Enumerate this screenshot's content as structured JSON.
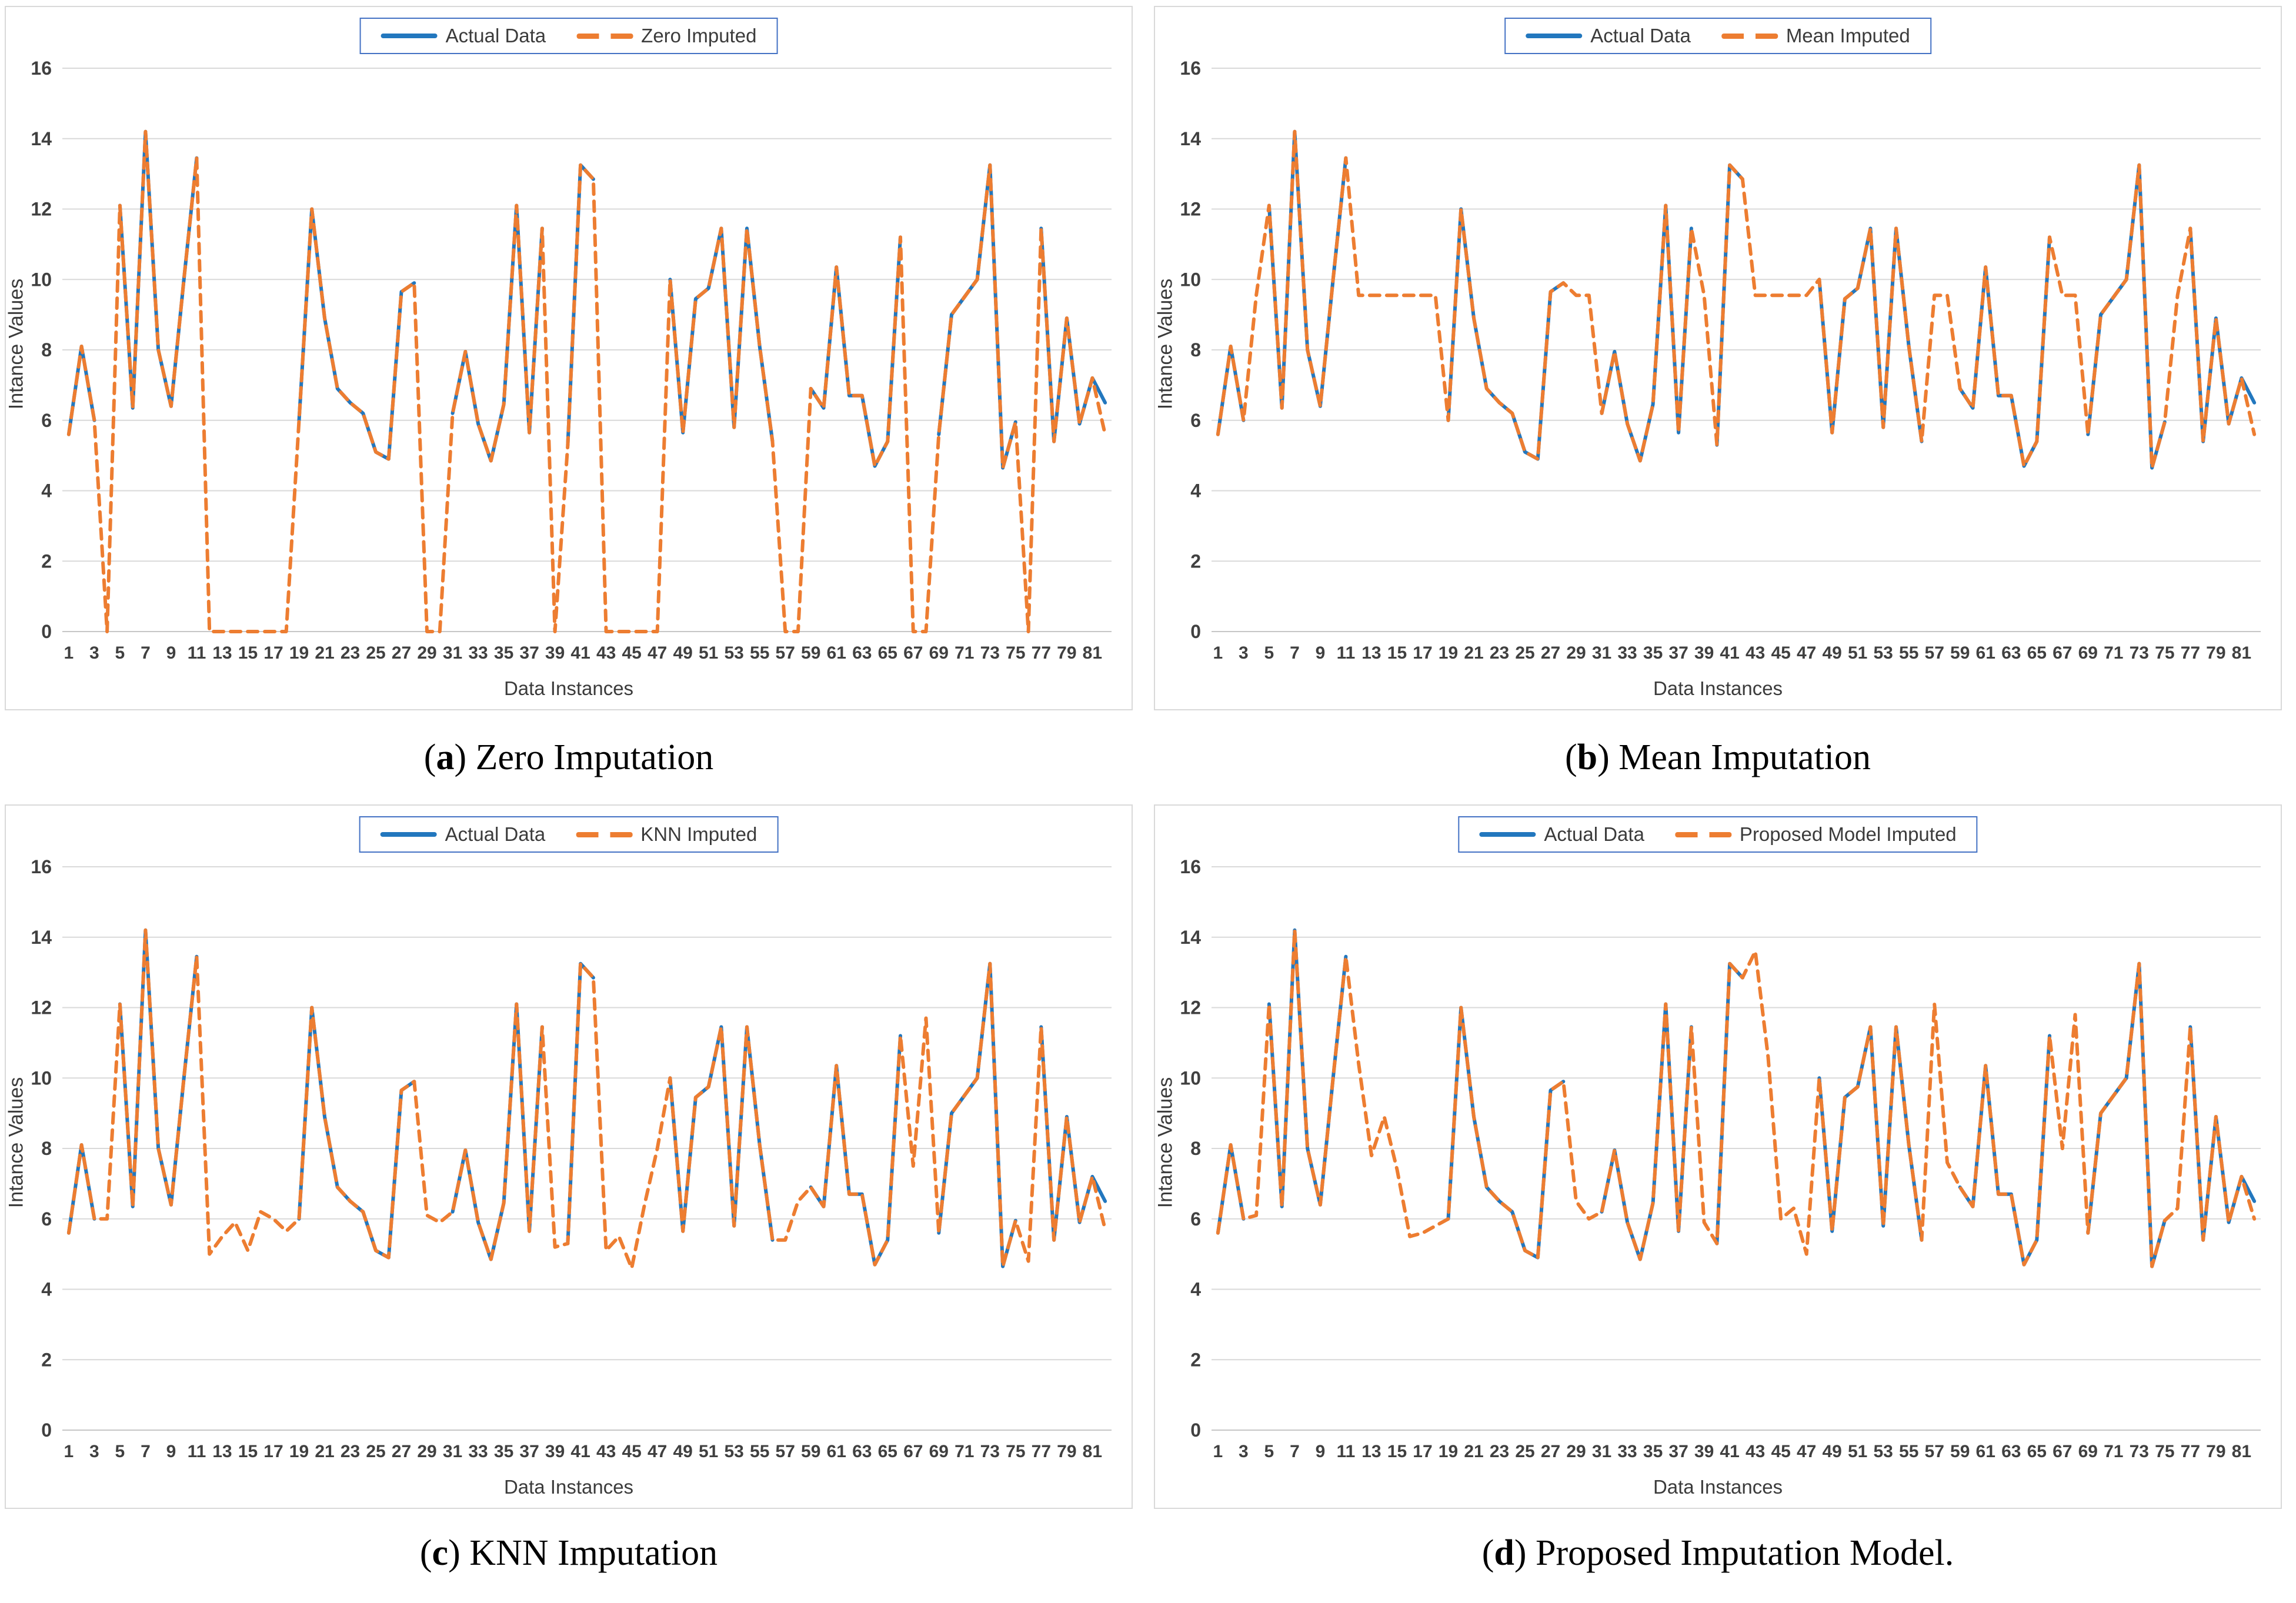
{
  "axis": {
    "y_label": "Intance Values",
    "x_label": "Data Instances",
    "y_ticks": [
      0,
      2,
      4,
      6,
      8,
      10,
      12,
      14,
      16
    ],
    "x_ticks": [
      1,
      3,
      5,
      7,
      9,
      11,
      13,
      15,
      17,
      19,
      21,
      23,
      25,
      27,
      29,
      31,
      33,
      35,
      37,
      39,
      41,
      43,
      45,
      47,
      49,
      51,
      53,
      55,
      57,
      59,
      61,
      63,
      65,
      67,
      69,
      71,
      73,
      75,
      77,
      79,
      81
    ],
    "ylim": [
      0,
      16
    ]
  },
  "colors": {
    "actual_line": "#2277BE",
    "imputed_line": "#ED7D31",
    "gridline": "#D9D9D9",
    "axis_line": "#C6C6C6",
    "tick_text": "#404040",
    "legend_border": "#4472C4",
    "panel_border": "#D9D9D9"
  },
  "punctuation": {
    "paren_open": "(",
    "paren_close": ")",
    "space": " "
  },
  "chart_data": {
    "type": "line",
    "n_points": 82,
    "xlabel": "Data Instances",
    "ylabel": "Intance Values",
    "ylim": [
      0,
      16
    ],
    "grid": true,
    "legend_position": "top-center",
    "actual": [
      5.6,
      8.1,
      6.0,
      null,
      12.1,
      6.35,
      14.2,
      8.0,
      6.4,
      10.0,
      13.45,
      null,
      null,
      null,
      null,
      null,
      null,
      null,
      6.0,
      12.0,
      8.9,
      6.9,
      6.5,
      6.2,
      5.1,
      4.9,
      9.65,
      9.9,
      null,
      null,
      6.2,
      7.95,
      5.9,
      4.85,
      6.45,
      12.1,
      5.65,
      11.45,
      null,
      5.3,
      13.25,
      12.85,
      null,
      null,
      null,
      null,
      null,
      10.0,
      5.65,
      9.45,
      9.75,
      11.45,
      5.8,
      11.45,
      8.1,
      5.4,
      null,
      null,
      6.9,
      6.35,
      10.35,
      6.7,
      6.7,
      4.7,
      5.4,
      11.2,
      null,
      null,
      5.6,
      9.0,
      9.5,
      10.0,
      13.25,
      4.65,
      5.95,
      null,
      11.45,
      5.4,
      8.9,
      5.9,
      7.2,
      6.5
    ],
    "missing_indices": [
      4,
      12,
      13,
      14,
      15,
      16,
      17,
      18,
      29,
      30,
      39,
      43,
      44,
      45,
      46,
      47,
      57,
      58,
      67,
      68,
      76
    ],
    "charts": [
      {
        "key": "zero",
        "caption_letter": "a",
        "caption": "Zero Imputation",
        "legend_actual": "Actual Data",
        "legend_imputed": "Zero Imputed",
        "imputed": {
          "4": 0,
          "12": 0,
          "13": 0,
          "14": 0,
          "15": 0,
          "16": 0,
          "17": 0,
          "18": 0,
          "29": 0,
          "30": 0,
          "39": 0,
          "43": 0,
          "44": 0,
          "45": 0,
          "46": 0,
          "47": 0,
          "57": 0,
          "58": 0,
          "67": 0,
          "68": 0,
          "76": 0,
          "82": 5.6
        }
      },
      {
        "key": "mean",
        "caption_letter": "b",
        "caption": "Mean Imputation",
        "legend_actual": "Actual Data",
        "legend_imputed": "Mean Imputed",
        "imputed": {
          "4": 9.55,
          "12": 9.55,
          "13": 9.55,
          "14": 9.55,
          "15": 9.55,
          "16": 9.55,
          "17": 9.55,
          "18": 9.55,
          "29": 9.55,
          "30": 9.55,
          "39": 9.55,
          "43": 9.55,
          "44": 9.55,
          "45": 9.55,
          "46": 9.55,
          "47": 9.55,
          "57": 9.55,
          "58": 9.55,
          "67": 9.55,
          "68": 9.55,
          "76": 9.55,
          "82": 5.6
        }
      },
      {
        "key": "knn",
        "caption_letter": "c",
        "caption": "KNN Imputation",
        "legend_actual": "Actual Data",
        "legend_imputed": "KNN Imputed",
        "imputed": {
          "4": 6.0,
          "12": 5.0,
          "13": 5.5,
          "14": 5.9,
          "15": 5.1,
          "16": 6.2,
          "17": 6.0,
          "18": 5.65,
          "29": 6.1,
          "30": 5.9,
          "39": 5.2,
          "43": 5.1,
          "44": 5.5,
          "45": 4.6,
          "46": 6.4,
          "47": 8.0,
          "57": 5.4,
          "58": 6.5,
          "67": 7.5,
          "68": 11.7,
          "76": 4.8,
          "82": 5.7
        }
      },
      {
        "key": "proposed",
        "caption_letter": "d",
        "caption": "Proposed Imputation Model.",
        "legend_actual": "Actual Data",
        "legend_imputed": "Proposed Model Imputed",
        "imputed": {
          "4": 6.1,
          "12": 10.4,
          "13": 7.8,
          "14": 8.9,
          "15": 7.4,
          "16": 5.5,
          "17": 5.6,
          "18": 5.8,
          "29": 6.5,
          "30": 6.0,
          "39": 5.9,
          "43": 13.6,
          "44": 10.6,
          "45": 6.0,
          "46": 6.3,
          "47": 5.0,
          "57": 12.1,
          "58": 7.6,
          "67": 8.0,
          "68": 11.8,
          "76": 6.3,
          "82": 6.0
        }
      }
    ]
  }
}
